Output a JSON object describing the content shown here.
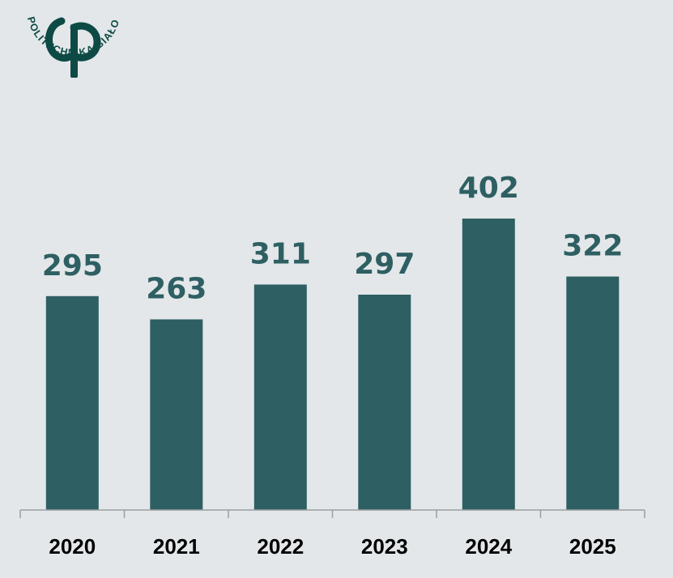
{
  "logo": {
    "text": "POLITECHNIKA BIAŁOSTOCKA",
    "color": "#0e4a45"
  },
  "colors": {
    "background": "#e3e7e9",
    "bar": "#2e5f62",
    "value_label": "#2e5f62",
    "tick_label": "#000000",
    "axis": "#9a9fa3"
  },
  "chart_data": {
    "type": "bar",
    "title": "",
    "xlabel": "",
    "ylabel": "",
    "categories": [
      "2020",
      "2021",
      "2022",
      "2023",
      "2024",
      "2025"
    ],
    "values": [
      295,
      263,
      311,
      297,
      402,
      322
    ],
    "ylim": [
      0,
      440
    ],
    "grid": false,
    "data_labels": [
      "295",
      "263",
      "311",
      "297",
      "402",
      "322"
    ]
  }
}
